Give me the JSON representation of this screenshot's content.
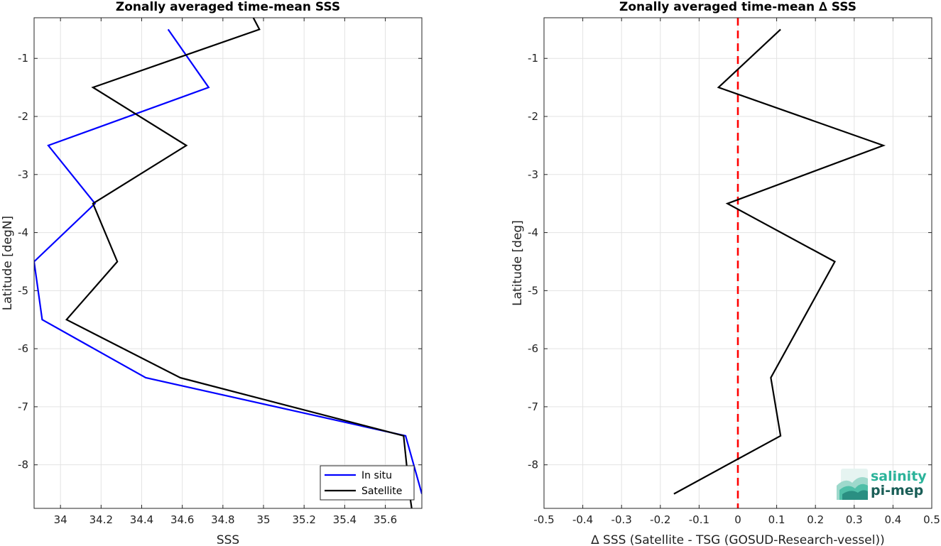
{
  "chart_data": [
    {
      "type": "line",
      "title": "Zonally averaged time-mean SSS",
      "xlabel": "SSS",
      "ylabel": "Latitude [degN]",
      "xlim": [
        33.87,
        35.78
      ],
      "ylim": [
        -8.75,
        -0.3
      ],
      "xticks": [
        "34",
        "34.2",
        "34.4",
        "34.6",
        "34.8",
        "35",
        "35.2",
        "35.4",
        "35.6"
      ],
      "yticks": [
        "-1",
        "-2",
        "-3",
        "-4",
        "-5",
        "-6",
        "-7",
        "-8"
      ],
      "grid": true,
      "legend_position": "bottom-right",
      "series": [
        {
          "name": "In situ",
          "color": "#0000ff",
          "points": [
            [
              34.53,
              -0.5
            ],
            [
              34.73,
              -1.5
            ],
            [
              33.94,
              -2.5
            ],
            [
              34.17,
              -3.5
            ],
            [
              33.87,
              -4.5
            ],
            [
              33.91,
              -5.5
            ],
            [
              34.42,
              -6.5
            ],
            [
              35.7,
              -7.5
            ],
            [
              35.78,
              -8.5
            ]
          ]
        },
        {
          "name": "Satellite",
          "color": "#000000",
          "points": [
            [
              34.95,
              -0.3
            ],
            [
              34.98,
              -0.5
            ],
            [
              34.16,
              -1.5
            ],
            [
              34.62,
              -2.5
            ],
            [
              34.16,
              -3.5
            ],
            [
              34.28,
              -4.5
            ],
            [
              34.03,
              -5.5
            ],
            [
              34.59,
              -6.5
            ],
            [
              35.69,
              -7.5
            ],
            [
              35.72,
              -8.5
            ],
            [
              35.73,
              -8.75
            ]
          ]
        }
      ]
    },
    {
      "type": "line",
      "title": "Zonally averaged time-mean ∆ SSS",
      "xlabel": "∆ SSS (Satellite - TSG (GOSUD-Research-vessel))",
      "ylabel": "Latitude [deg]",
      "xlim": [
        -0.5,
        0.5
      ],
      "ylim": [
        -8.75,
        -0.3
      ],
      "xticks": [
        "-0.5",
        "-0.4",
        "-0.3",
        "-0.2",
        "-0.1",
        "0",
        "0.1",
        "0.2",
        "0.3",
        "0.4",
        "0.5"
      ],
      "yticks": [
        "-1",
        "-2",
        "-3",
        "-4",
        "-5",
        "-6",
        "-7",
        "-8"
      ],
      "grid": true,
      "reference_line": {
        "x": 0,
        "color": "#ff0000",
        "style": "dashed"
      },
      "series": [
        {
          "color": "#000000",
          "points": [
            [
              0.11,
              -0.5
            ],
            [
              -0.05,
              -1.5
            ],
            [
              0.375,
              -2.5
            ],
            [
              -0.027,
              -3.5
            ],
            [
              0.25,
              -4.5
            ],
            [
              0.085,
              -6.5
            ],
            [
              0.11,
              -7.5
            ],
            [
              -0.165,
              -8.5
            ]
          ]
        }
      ]
    }
  ],
  "logo": {
    "line1": "salinity",
    "line2": "pi-mep"
  }
}
